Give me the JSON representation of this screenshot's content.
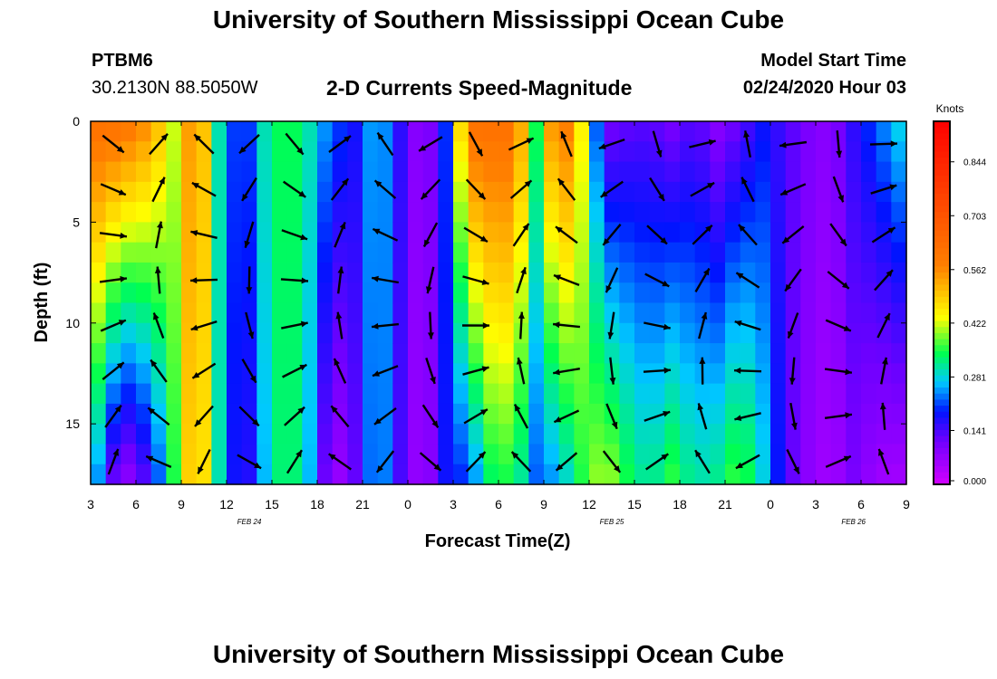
{
  "header": {
    "title": "University of Southern Mississippi Ocean Cube",
    "station_id": "PTBM6",
    "coordinates": "30.2130N 88.5050W",
    "model_start_label": "Model Start Time",
    "model_start_value": "02/24/2020 Hour 03"
  },
  "footer": {
    "title": "University of Southern Mississippi Ocean Cube"
  },
  "colors": {
    "vector": "#000000",
    "frame": "#000000",
    "background": "#ffffff"
  },
  "chart_data": {
    "type": "heatmap",
    "title": "2-D Currents Speed-Magnitude",
    "xlabel": "Forecast Time(Z)",
    "ylabel": "Depth (ft)",
    "x_hours_since_start": [
      0,
      54
    ],
    "ylim": [
      0,
      18
    ],
    "y_inverted": true,
    "x_tick_labels": [
      "3",
      "6",
      "9",
      "12",
      "15",
      "18",
      "21",
      "0",
      "3",
      "6",
      "9",
      "12",
      "15",
      "18",
      "21",
      "0",
      "3",
      "6",
      "9"
    ],
    "y_ticks": [
      0,
      5,
      10,
      15
    ],
    "date_labels": [
      {
        "text": "FEB 24",
        "hour": 10.5
      },
      {
        "text": "FEB 25",
        "hour": 34.5
      },
      {
        "text": "FEB 26",
        "hour": 50.5
      }
    ],
    "colorbar": {
      "unit": "Knots",
      "range": [
        0.0,
        0.95
      ],
      "ticks": [
        "0.844",
        "0.703",
        "0.562",
        "0.422",
        "0.281",
        "0.141",
        "0.000"
      ],
      "tick_values": [
        0.844,
        0.703,
        0.562,
        0.422,
        0.281,
        0.141,
        0.0
      ]
    },
    "speed_column_profiles": [
      {
        "hour": 0,
        "surface": 0.62,
        "bottom": 0.3
      },
      {
        "hour": 2,
        "surface": 0.62,
        "bottom": 0.05
      },
      {
        "hour": 4,
        "surface": 0.55,
        "bottom": 0.15
      },
      {
        "hour": 5.5,
        "surface": 0.42,
        "bottom": 0.35
      },
      {
        "hour": 7,
        "surface": 0.6,
        "bottom": 0.55
      },
      {
        "hour": 8.5,
        "surface": 0.3,
        "bottom": 0.3
      },
      {
        "hour": 10,
        "surface": 0.16,
        "bottom": 0.12
      },
      {
        "hour": 11.5,
        "surface": 0.3,
        "bottom": 0.26
      },
      {
        "hour": 13,
        "surface": 0.36,
        "bottom": 0.36
      },
      {
        "hour": 14.5,
        "surface": 0.3,
        "bottom": 0.26
      },
      {
        "hour": 16,
        "surface": 0.22,
        "bottom": 0.04
      },
      {
        "hour": 17.5,
        "surface": 0.18,
        "bottom": 0.12
      },
      {
        "hour": 19,
        "surface": 0.28,
        "bottom": 0.28
      },
      {
        "hour": 20.5,
        "surface": 0.16,
        "bottom": 0.14
      },
      {
        "hour": 22,
        "surface": 0.05,
        "bottom": 0.04
      },
      {
        "hour": 23.5,
        "surface": 0.2,
        "bottom": 0.18
      },
      {
        "hour": 25,
        "surface": 0.62,
        "bottom": 0.2
      },
      {
        "hour": 26.5,
        "surface": 0.62,
        "bottom": 0.33
      },
      {
        "hour": 28,
        "surface": 0.62,
        "bottom": 0.35
      },
      {
        "hour": 29.5,
        "surface": 0.35,
        "bottom": 0.22
      },
      {
        "hour": 31,
        "surface": 0.65,
        "bottom": 0.25
      },
      {
        "hour": 32.5,
        "surface": 0.45,
        "bottom": 0.35
      },
      {
        "hour": 34,
        "surface": 0.1,
        "bottom": 0.42
      },
      {
        "hour": 35.5,
        "surface": 0.12,
        "bottom": 0.35
      },
      {
        "hour": 37,
        "surface": 0.13,
        "bottom": 0.3
      },
      {
        "hour": 38.5,
        "surface": 0.1,
        "bottom": 0.36
      },
      {
        "hour": 40,
        "surface": 0.14,
        "bottom": 0.3
      },
      {
        "hour": 41.5,
        "surface": 0.08,
        "bottom": 0.32
      },
      {
        "hour": 43,
        "surface": 0.12,
        "bottom": 0.38
      },
      {
        "hour": 44.5,
        "surface": 0.18,
        "bottom": 0.28
      },
      {
        "hour": 46,
        "surface": 0.14,
        "bottom": 0.14
      },
      {
        "hour": 47.5,
        "surface": 0.1,
        "bottom": 0.08
      },
      {
        "hour": 49,
        "surface": 0.08,
        "bottom": 0.05
      },
      {
        "hour": 50.5,
        "surface": 0.16,
        "bottom": 0.1
      },
      {
        "hour": 52,
        "surface": 0.22,
        "bottom": 0.06
      },
      {
        "hour": 54,
        "surface": 0.3,
        "bottom": 0.05
      }
    ]
  }
}
